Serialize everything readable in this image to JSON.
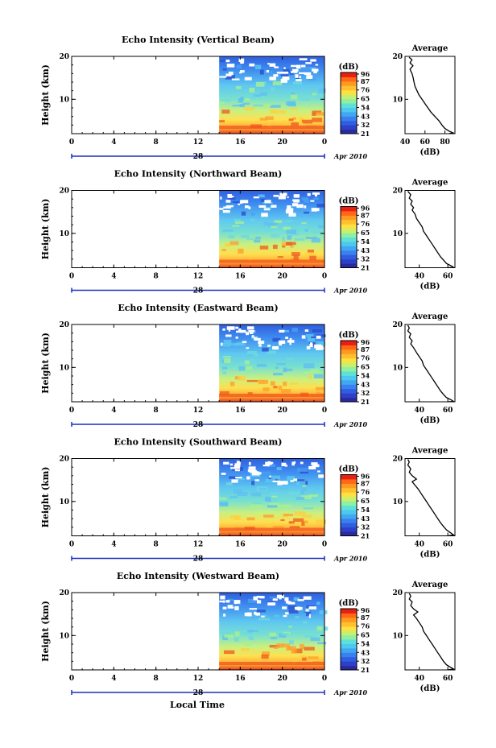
{
  "figure": {
    "xlabel": "Local Time",
    "date_label": "Apr 2010",
    "day_label": "28",
    "colorbar_unit": "(dB)",
    "colorbar_ticks": [
      "96",
      "87",
      "76",
      "65",
      "54",
      "43",
      "32",
      "21"
    ],
    "average_title": "Average",
    "average_xlabel": "(dB)",
    "ylabel": "Height (km)"
  },
  "chart_data": [
    {
      "type": "heatmap",
      "title": "Echo Intensity (Vertical Beam)",
      "xlabel": "Local Time",
      "ylabel": "Height (km)",
      "x_ticks": [
        "0",
        "4",
        "8",
        "12",
        "16",
        "20",
        "0"
      ],
      "y_ticks": [
        "20",
        "10"
      ],
      "xlim": [
        0,
        24
      ],
      "ylim": [
        2,
        20
      ],
      "data_start_hour": 14,
      "colorbar": {
        "unit": "(dB)",
        "ticks": [
          96,
          87,
          76,
          65,
          54,
          43,
          32,
          21
        ],
        "range": [
          21,
          98
        ]
      },
      "average_profile": {
        "title": "Average",
        "xlabel": "(dB)",
        "x_ticks": [
          "40",
          "60",
          "80"
        ],
        "xlim": [
          40,
          90
        ],
        "y_ticks": [
          "20",
          "10"
        ],
        "ylim": [
          2,
          20
        ],
        "points": [
          [
            44,
            19.8
          ],
          [
            47,
            19.2
          ],
          [
            45,
            18.5
          ],
          [
            48,
            17.8
          ],
          [
            45,
            17.0
          ],
          [
            46,
            16.5
          ],
          [
            47,
            16.0
          ],
          [
            48,
            15.2
          ],
          [
            49,
            14.0
          ],
          [
            50,
            13.0
          ],
          [
            52,
            12.0
          ],
          [
            54,
            11.0
          ],
          [
            57,
            10.0
          ],
          [
            60,
            9.0
          ],
          [
            63,
            8.0
          ],
          [
            66,
            7.0
          ],
          [
            70,
            6.0
          ],
          [
            74,
            5.0
          ],
          [
            77,
            4.0
          ],
          [
            80,
            3.2
          ],
          [
            84,
            2.6
          ],
          [
            88,
            2.2
          ],
          [
            84,
            2.0
          ]
        ]
      }
    },
    {
      "type": "heatmap",
      "title": "Echo Intensity (Northward Beam)",
      "xlabel": "Local Time",
      "ylabel": "Height (km)",
      "x_ticks": [
        "0",
        "4",
        "8",
        "12",
        "16",
        "20",
        "0"
      ],
      "y_ticks": [
        "20",
        "10"
      ],
      "xlim": [
        0,
        24
      ],
      "ylim": [
        2,
        20
      ],
      "data_start_hour": 14,
      "colorbar": {
        "unit": "(dB)",
        "ticks": [
          96,
          87,
          76,
          65,
          54,
          43,
          32,
          21
        ],
        "range": [
          21,
          98
        ]
      },
      "average_profile": {
        "title": "Average",
        "xlabel": "(dB)",
        "x_ticks": [
          "40",
          "60"
        ],
        "xlim": [
          30,
          65
        ],
        "y_ticks": [
          "20",
          "10"
        ],
        "ylim": [
          2,
          20
        ],
        "points": [
          [
            32,
            19.8
          ],
          [
            34,
            19.0
          ],
          [
            33,
            18.2
          ],
          [
            35,
            17.5
          ],
          [
            34,
            16.8
          ],
          [
            36,
            16.0
          ],
          [
            35,
            15.4
          ],
          [
            37,
            14.5
          ],
          [
            38,
            13.5
          ],
          [
            40,
            12.5
          ],
          [
            42,
            11.5
          ],
          [
            43,
            10.5
          ],
          [
            45,
            9.5
          ],
          [
            47,
            8.5
          ],
          [
            49,
            7.5
          ],
          [
            51,
            6.5
          ],
          [
            53,
            5.5
          ],
          [
            55,
            4.5
          ],
          [
            57,
            3.8
          ],
          [
            59,
            3.0
          ],
          [
            62,
            2.5
          ],
          [
            64,
            2.1
          ],
          [
            60,
            2.0
          ]
        ]
      }
    },
    {
      "type": "heatmap",
      "title": "Echo Intensity (Eastward Beam)",
      "xlabel": "Local Time",
      "ylabel": "Height (km)",
      "x_ticks": [
        "0",
        "4",
        "8",
        "12",
        "16",
        "20",
        "0"
      ],
      "y_ticks": [
        "20",
        "10"
      ],
      "xlim": [
        0,
        24
      ],
      "ylim": [
        2,
        20
      ],
      "data_start_hour": 14,
      "colorbar": {
        "unit": "(dB)",
        "ticks": [
          96,
          87,
          76,
          65,
          54,
          43,
          32,
          21
        ],
        "range": [
          21,
          98
        ]
      },
      "average_profile": {
        "title": "Average",
        "xlabel": "(dB)",
        "x_ticks": [
          "40",
          "60"
        ],
        "xlim": [
          30,
          65
        ],
        "y_ticks": [
          "20",
          "10"
        ],
        "ylim": [
          2,
          20
        ],
        "points": [
          [
            32,
            19.8
          ],
          [
            33,
            19.2
          ],
          [
            32,
            18.5
          ],
          [
            34,
            17.8
          ],
          [
            33,
            17.0
          ],
          [
            35,
            16.2
          ],
          [
            34,
            15.5
          ],
          [
            36,
            14.6
          ],
          [
            38,
            13.5
          ],
          [
            40,
            12.5
          ],
          [
            42,
            11.5
          ],
          [
            43,
            10.5
          ],
          [
            45,
            9.5
          ],
          [
            47,
            8.5
          ],
          [
            49,
            7.5
          ],
          [
            51,
            6.5
          ],
          [
            53,
            5.5
          ],
          [
            55,
            4.5
          ],
          [
            57,
            3.7
          ],
          [
            59,
            3.0
          ],
          [
            62,
            2.5
          ],
          [
            64,
            2.1
          ],
          [
            60,
            2.0
          ]
        ]
      }
    },
    {
      "type": "heatmap",
      "title": "Echo Intensity (Southward Beam)",
      "xlabel": "Local Time",
      "ylabel": "Height (km)",
      "x_ticks": [
        "0",
        "4",
        "8",
        "12",
        "16",
        "20",
        "0"
      ],
      "y_ticks": [
        "20",
        "10"
      ],
      "xlim": [
        0,
        24
      ],
      "ylim": [
        2,
        20
      ],
      "data_start_hour": 14,
      "colorbar": {
        "unit": "(dB)",
        "ticks": [
          96,
          87,
          76,
          65,
          54,
          43,
          32,
          21
        ],
        "range": [
          21,
          98
        ]
      },
      "average_profile": {
        "title": "Average",
        "xlabel": "(dB)",
        "x_ticks": [
          "40",
          "60"
        ],
        "xlim": [
          30,
          65
        ],
        "y_ticks": [
          "20",
          "10"
        ],
        "ylim": [
          2,
          20
        ],
        "points": [
          [
            32,
            19.8
          ],
          [
            33,
            19.2
          ],
          [
            32,
            18.5
          ],
          [
            34,
            17.6
          ],
          [
            33,
            16.8
          ],
          [
            35,
            16.0
          ],
          [
            38,
            15.2
          ],
          [
            35,
            14.6
          ],
          [
            37,
            13.8
          ],
          [
            39,
            13.0
          ],
          [
            41,
            12.0
          ],
          [
            43,
            11.0
          ],
          [
            45,
            10.0
          ],
          [
            47,
            9.0
          ],
          [
            49,
            8.0
          ],
          [
            51,
            7.0
          ],
          [
            53,
            6.0
          ],
          [
            55,
            5.0
          ],
          [
            57,
            4.2
          ],
          [
            59,
            3.4
          ],
          [
            62,
            2.7
          ],
          [
            64,
            2.2
          ],
          [
            60,
            2.0
          ]
        ]
      }
    },
    {
      "type": "heatmap",
      "title": "Echo Intensity (Westward Beam)",
      "xlabel": "Local Time",
      "ylabel": "Height (km)",
      "x_ticks": [
        "0",
        "4",
        "8",
        "12",
        "16",
        "20",
        "0"
      ],
      "y_ticks": [
        "20",
        "10"
      ],
      "xlim": [
        0,
        24
      ],
      "ylim": [
        2,
        20
      ],
      "data_start_hour": 14,
      "colorbar": {
        "unit": "(dB)",
        "ticks": [
          96,
          87,
          76,
          65,
          54,
          43,
          32,
          21
        ],
        "range": [
          21,
          98
        ]
      },
      "average_profile": {
        "title": "Average",
        "xlabel": "(dB)",
        "x_ticks": [
          "40",
          "60"
        ],
        "xlim": [
          30,
          65
        ],
        "y_ticks": [
          "20",
          "10"
        ],
        "ylim": [
          2,
          20
        ],
        "points": [
          [
            33,
            19.8
          ],
          [
            34,
            19.2
          ],
          [
            33,
            18.5
          ],
          [
            35,
            17.8
          ],
          [
            34,
            17.0
          ],
          [
            36,
            16.2
          ],
          [
            39,
            15.5
          ],
          [
            36,
            14.8
          ],
          [
            38,
            14.0
          ],
          [
            40,
            13.0
          ],
          [
            42,
            12.0
          ],
          [
            43,
            11.0
          ],
          [
            45,
            10.0
          ],
          [
            47,
            9.0
          ],
          [
            49,
            8.0
          ],
          [
            51,
            7.0
          ],
          [
            53,
            6.0
          ],
          [
            55,
            5.0
          ],
          [
            57,
            4.0
          ],
          [
            59,
            3.2
          ],
          [
            62,
            2.6
          ],
          [
            64,
            2.2
          ],
          [
            60,
            2.0
          ]
        ]
      }
    }
  ]
}
